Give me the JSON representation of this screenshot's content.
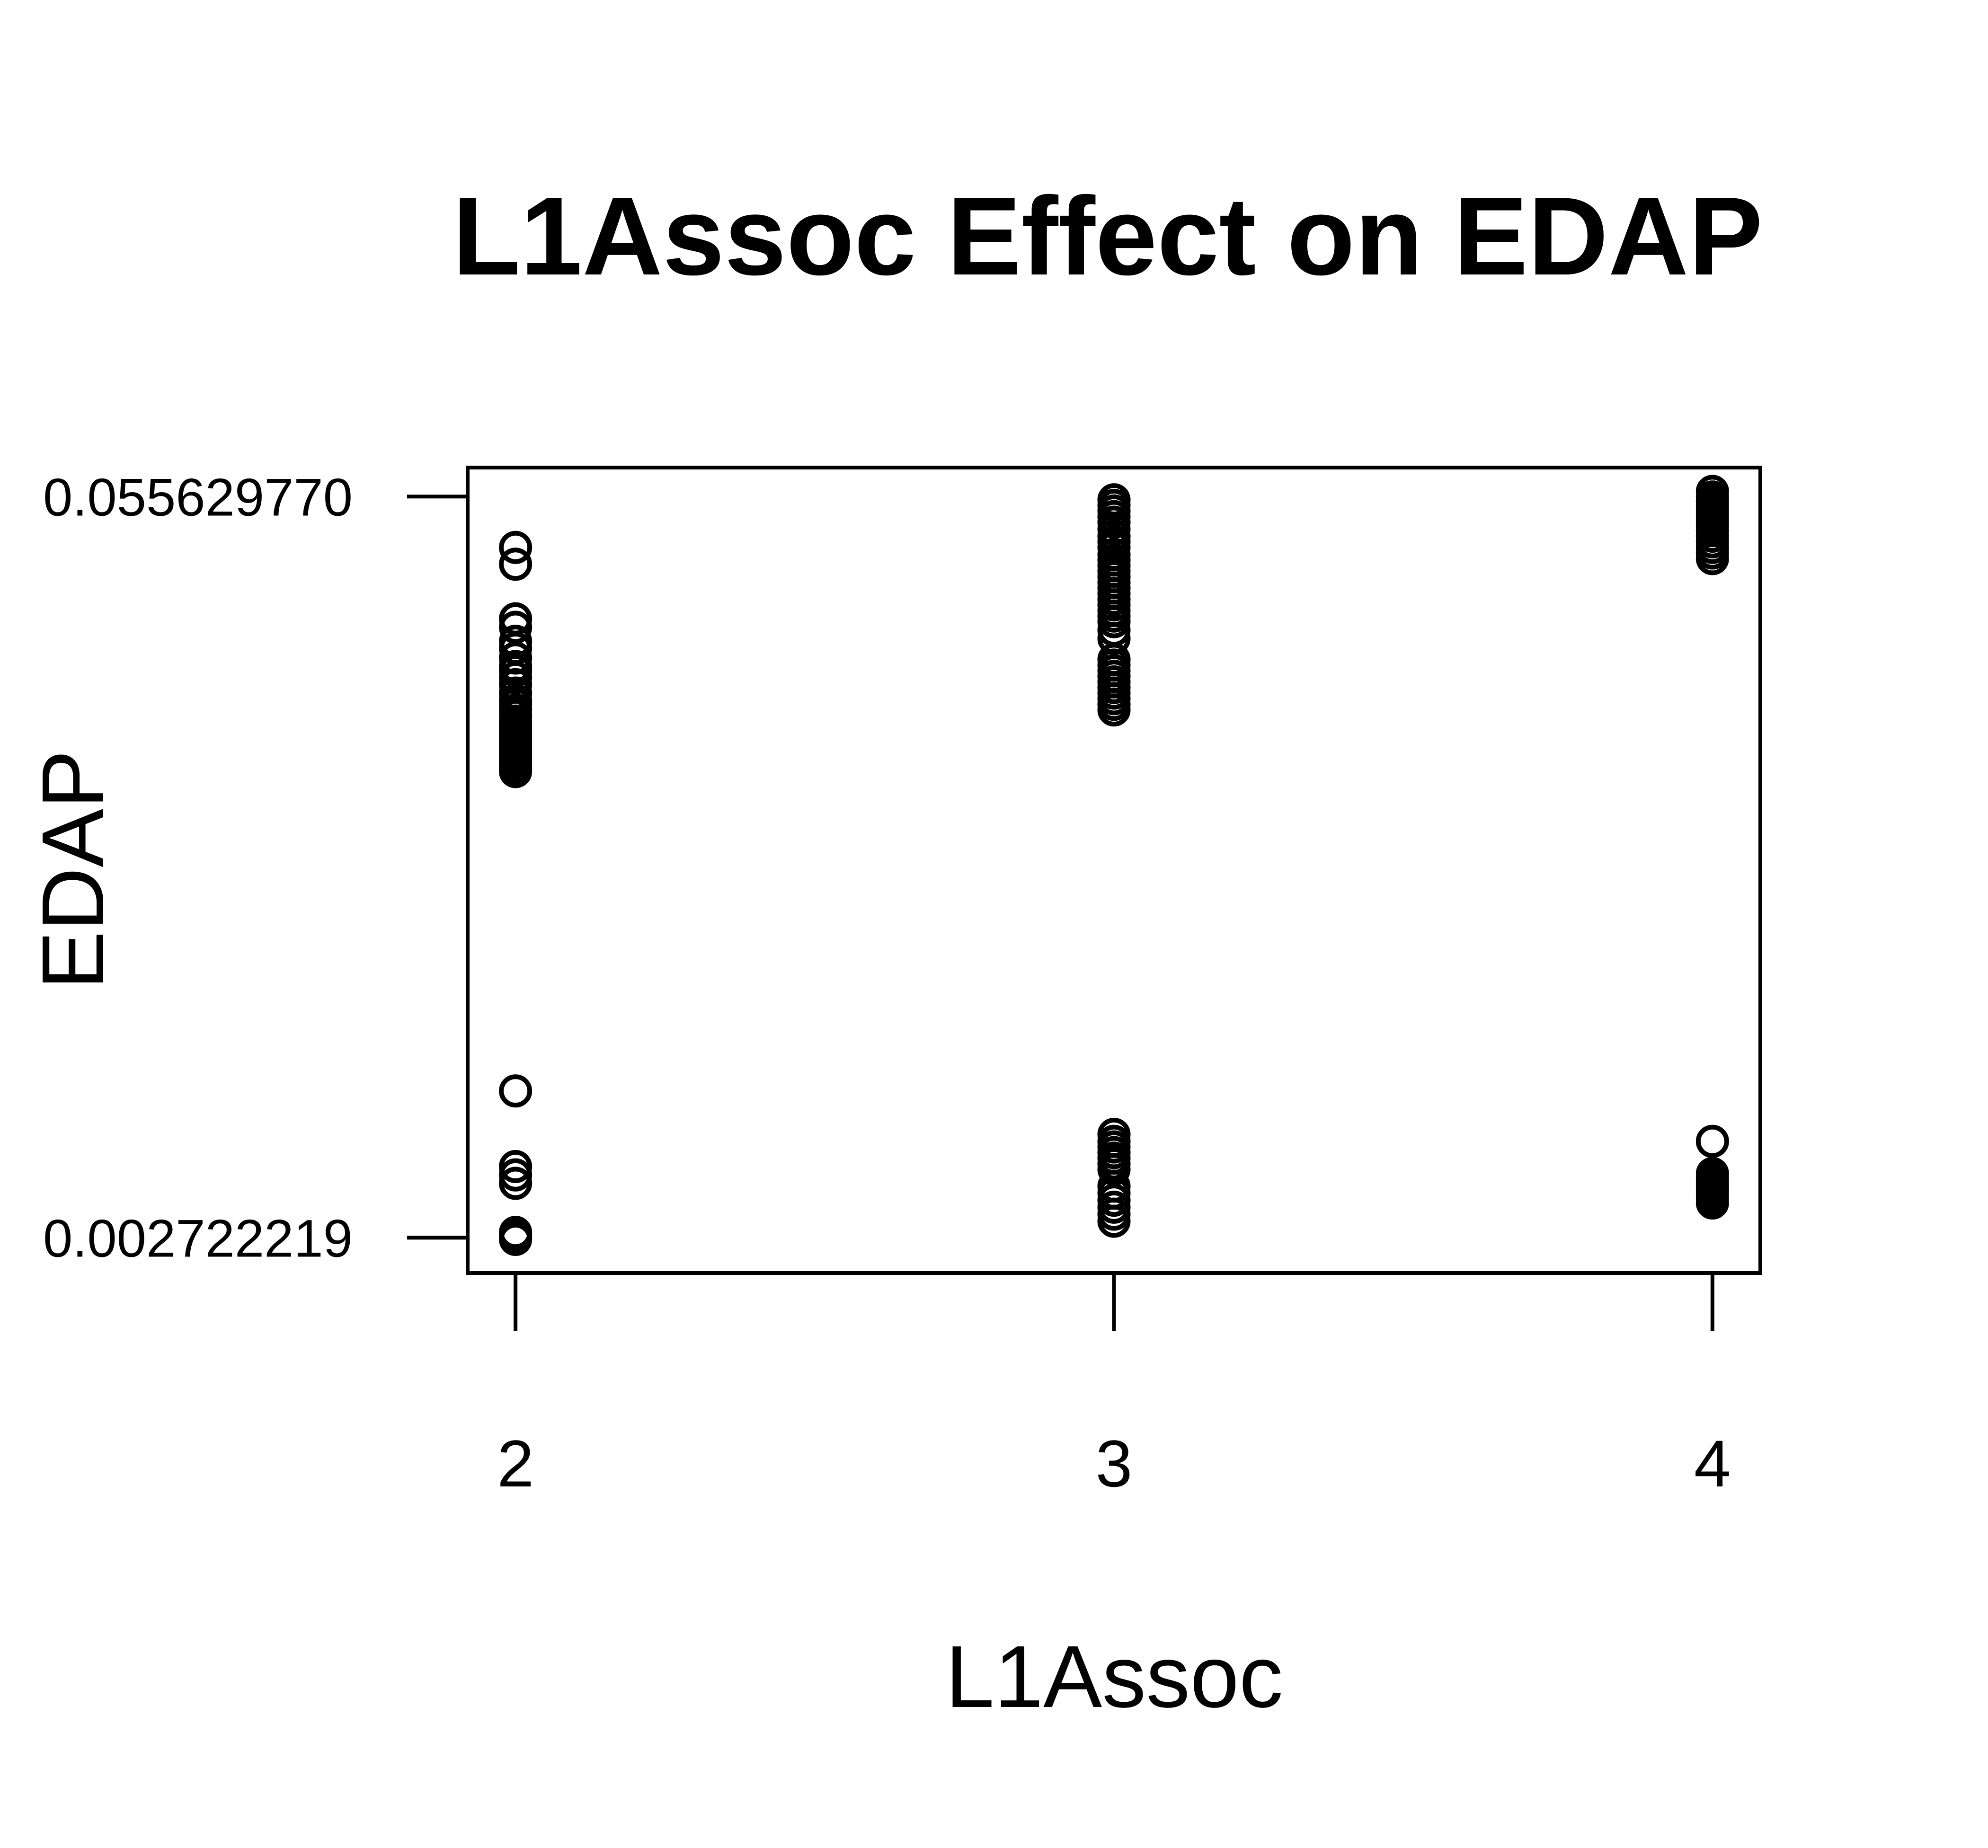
{
  "chart_data": {
    "type": "scatter",
    "title": "L1Assoc Effect on EDAP",
    "xlabel": "L1Assoc",
    "ylabel": "EDAP",
    "x_ticks": [
      {
        "value": 2,
        "label": "2"
      },
      {
        "value": 3,
        "label": "3"
      },
      {
        "value": 4,
        "label": "4"
      }
    ],
    "y_ticks": [
      {
        "value": 0.002722219,
        "label": "0.002722219"
      },
      {
        "value": 0.05562977,
        "label": "0.055629770"
      }
    ],
    "xlim": [
      1.92,
      4.08
    ],
    "ylim": [
      0.0002,
      0.0577
    ],
    "grid": false,
    "legend": "none",
    "marker": "open-circle",
    "colors": {
      "marker": "#000000",
      "frame": "#000000",
      "background": "#ffffff"
    },
    "series": [
      {
        "x": 2,
        "y": [
          0.052,
          0.0508,
          0.0469,
          0.0463,
          0.0453,
          0.0448,
          0.0441,
          0.0435,
          0.0432,
          0.0427,
          0.0422,
          0.0416,
          0.0411,
          0.0408,
          0.0404,
          0.04,
          0.0396,
          0.0393,
          0.039,
          0.0387,
          0.0384,
          0.0381,
          0.0378,
          0.0375,
          0.0372,
          0.0369,
          0.0366,
          0.0363,
          0.036,
          0.0132,
          0.0078,
          0.0072,
          0.0066,
          0.0031,
          0.0028,
          0.0026
        ]
      },
      {
        "x": 3,
        "y": [
          0.0554,
          0.055,
          0.0546,
          0.0542,
          0.0538,
          0.0533,
          0.0528,
          0.0524,
          0.052,
          0.0515,
          0.0511,
          0.0507,
          0.0503,
          0.0499,
          0.0495,
          0.0491,
          0.0487,
          0.0483,
          0.0479,
          0.0475,
          0.0471,
          0.0467,
          0.0461,
          0.0455,
          0.044,
          0.0436,
          0.0432,
          0.0428,
          0.0424,
          0.042,
          0.0416,
          0.0412,
          0.0408,
          0.0404,
          0.0101,
          0.0096,
          0.0092,
          0.0088,
          0.0084,
          0.008,
          0.0076,
          0.0064,
          0.0059,
          0.0054,
          0.0049,
          0.0044,
          0.0039
        ]
      },
      {
        "x": 4,
        "y": [
          0.056,
          0.0556,
          0.0553,
          0.055,
          0.0547,
          0.0544,
          0.0541,
          0.0538,
          0.0535,
          0.0532,
          0.0528,
          0.0524,
          0.052,
          0.0516,
          0.0512,
          0.0096,
          0.0073,
          0.007,
          0.0067,
          0.0064,
          0.0061,
          0.0058,
          0.0055,
          0.0052
        ]
      }
    ]
  }
}
